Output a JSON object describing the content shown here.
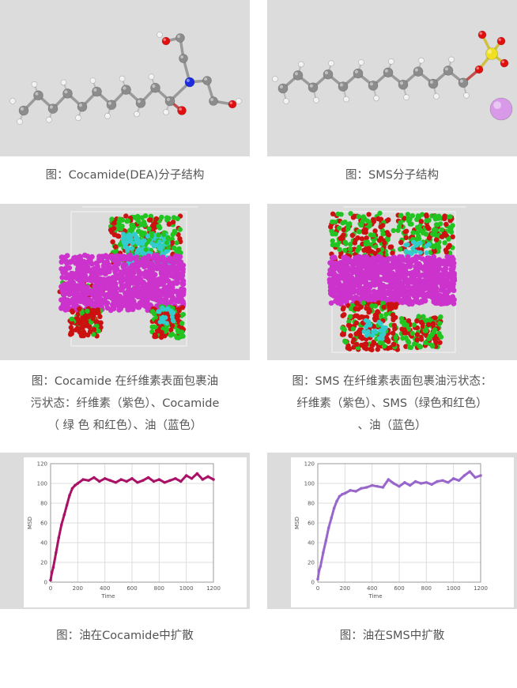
{
  "figures": [
    {
      "id": "cocamide-structure",
      "caption_lines": [
        "图：Cocamide(DEA)分子结构"
      ]
    },
    {
      "id": "sms-structure",
      "caption_lines": [
        "图：SMS分子结构"
      ]
    },
    {
      "id": "cocamide-sim",
      "caption_lines": [
        "图：Cocamide 在纤维素表面包裹油",
        "污状态：纤维素（紫色）、Cocamide",
        "（ 绿 色 和红色）、油（蓝色）"
      ]
    },
    {
      "id": "sms-sim",
      "caption_lines": [
        "图：SMS 在纤维素表面包裹油污状态：",
        "纤维素（紫色）、SMS（绿色和红色）",
        "、油（蓝色）"
      ]
    },
    {
      "id": "cocamide-msd",
      "caption_lines": [
        "图：油在Cocamide中扩散"
      ]
    },
    {
      "id": "sms-msd",
      "caption_lines": [
        "图：油在SMS中扩散"
      ]
    }
  ],
  "colors": {
    "panel_bg": "#dcdcdc",
    "carbon": "#8c8c8c",
    "hydrogen": "#f2f2f2",
    "oxygen": "#e01010",
    "nitrogen": "#1a2be0",
    "sulfur": "#f0e020",
    "sodium": "#d89ae8",
    "cellulose": "#cc33cc",
    "surfactant_green": "#22c422",
    "surfactant_red": "#cc1111",
    "oil": "#33cccc",
    "msd_cocamide": "#aa1166",
    "msd_sms": "#9966cc"
  },
  "chart_data": [
    {
      "type": "line",
      "id": "cocamide-msd",
      "xlabel": "Time",
      "ylabel": "MSD",
      "xlim": [
        0,
        1200
      ],
      "ylim": [
        0,
        120
      ],
      "x_ticks": [
        "0",
        "200",
        "400",
        "600",
        "800",
        "1000",
        "1200"
      ],
      "y_ticks": [
        "0",
        "20",
        "40",
        "60",
        "80",
        "100",
        "120"
      ],
      "grid": true,
      "series": [
        {
          "color": "#aa1166",
          "x": [
            0,
            10,
            20,
            40,
            60,
            80,
            100,
            120,
            140,
            160,
            180,
            200,
            240,
            280,
            320,
            360,
            400,
            440,
            480,
            520,
            560,
            600,
            640,
            680,
            720,
            760,
            800,
            840,
            880,
            920,
            960,
            1000,
            1040,
            1080,
            1120,
            1160,
            1200
          ],
          "y": [
            2,
            10,
            15,
            30,
            45,
            58,
            68,
            78,
            88,
            95,
            98,
            100,
            104,
            103,
            106,
            102,
            105,
            103,
            101,
            104,
            102,
            105,
            101,
            103,
            106,
            102,
            104,
            101,
            103,
            105,
            102,
            108,
            105,
            110,
            104,
            107,
            104
          ]
        }
      ]
    },
    {
      "type": "line",
      "id": "sms-msd",
      "xlabel": "Time",
      "ylabel": "MSD",
      "xlim": [
        0,
        1200
      ],
      "ylim": [
        0,
        120
      ],
      "x_ticks": [
        "0",
        "200",
        "400",
        "600",
        "800",
        "1000",
        "1200"
      ],
      "y_ticks": [
        "0",
        "20",
        "40",
        "60",
        "80",
        "100",
        "120"
      ],
      "grid": true,
      "series": [
        {
          "color": "#9966cc",
          "x": [
            0,
            10,
            20,
            40,
            60,
            80,
            100,
            120,
            140,
            160,
            180,
            200,
            240,
            280,
            320,
            360,
            400,
            440,
            480,
            520,
            560,
            600,
            640,
            680,
            720,
            760,
            800,
            840,
            880,
            920,
            960,
            1000,
            1040,
            1080,
            1120,
            1160,
            1200
          ],
          "y": [
            3,
            12,
            16,
            30,
            42,
            55,
            65,
            75,
            82,
            87,
            89,
            90,
            93,
            92,
            95,
            96,
            98,
            97,
            96,
            104,
            100,
            97,
            101,
            98,
            102,
            100,
            101,
            99,
            102,
            103,
            101,
            105,
            103,
            108,
            112,
            106,
            108
          ]
        }
      ]
    }
  ]
}
